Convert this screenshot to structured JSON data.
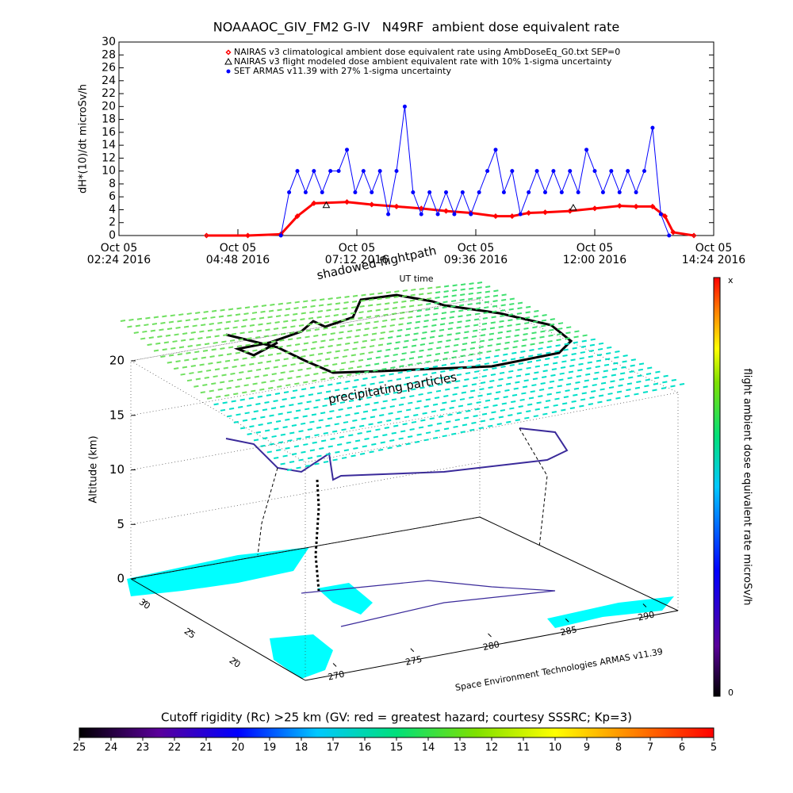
{
  "chart_data": [
    {
      "type": "line",
      "title": "NOAAAOC_GIV_FM2 G-IV   N49RF  ambient dose equivalent rate",
      "x_label": "UT time",
      "y_label": "dH*(10)/dt microSv/h",
      "annotation": "shadowed flightpath",
      "xlim": [
        "2016-10-05T02:24",
        "2016-10-05T14:24"
      ],
      "xticks": [
        {
          "value": "2016-10-05T02:24",
          "label": [
            "Oct 05",
            "02:24 2016"
          ]
        },
        {
          "value": "2016-10-05T04:48",
          "label": [
            "Oct 05",
            "04:48 2016"
          ]
        },
        {
          "value": "2016-10-05T07:12",
          "label": [
            "Oct 05",
            "07:12 2016"
          ]
        },
        {
          "value": "2016-10-05T09:36",
          "label": [
            "Oct 05",
            "09:36 2016"
          ]
        },
        {
          "value": "2016-10-05T12:00",
          "label": [
            "Oct 05",
            "12:00 2016"
          ]
        },
        {
          "value": "2016-10-05T14:24",
          "label": [
            "Oct 05",
            "14:24 2016"
          ]
        }
      ],
      "ylim": [
        0,
        30
      ],
      "yticks": [
        0,
        2,
        4,
        6,
        8,
        10,
        12,
        14,
        16,
        18,
        20,
        22,
        24,
        26,
        28,
        30
      ],
      "series": [
        {
          "name": "NAIRAS v3 climatological ambient dose equivalent rate using AmbDoseEq_G0.txt SEP=0",
          "color": "#ff0000",
          "marker": "diamond",
          "x": [
            "2016-10-05T04:10",
            "2016-10-05T05:00",
            "2016-10-05T05:40",
            "2016-10-05T06:00",
            "2016-10-05T06:20",
            "2016-10-05T07:00",
            "2016-10-05T07:30",
            "2016-10-05T08:00",
            "2016-10-05T08:30",
            "2016-10-05T09:00",
            "2016-10-05T09:30",
            "2016-10-05T10:00",
            "2016-10-05T10:20",
            "2016-10-05T10:40",
            "2016-10-05T11:00",
            "2016-10-05T11:30",
            "2016-10-05T12:00",
            "2016-10-05T12:30",
            "2016-10-05T12:50",
            "2016-10-05T13:10",
            "2016-10-05T13:25",
            "2016-10-05T13:35",
            "2016-10-05T14:00"
          ],
          "values": [
            0,
            0,
            0.2,
            3,
            5,
            5.2,
            4.8,
            4.5,
            4.2,
            3.8,
            3.5,
            3,
            3,
            3.5,
            3.6,
            3.8,
            4.2,
            4.6,
            4.5,
            4.5,
            3,
            0.5,
            0
          ]
        },
        {
          "name": "NAIRAS v3 flight modeled dose ambient equivalent rate with 10% 1-sigma uncertainty",
          "color": "#000000",
          "marker": "triangle",
          "x": [
            "2016-10-05T06:35",
            "2016-10-05T11:34"
          ],
          "values": [
            4.7,
            4.3
          ]
        },
        {
          "name": "SET ARMAS v11.39 with 27% 1-sigma uncertainty",
          "color": "#0000ff",
          "marker": "circle",
          "x": [
            "2016-10-05T05:40",
            "2016-10-05T05:50",
            "2016-10-05T06:00",
            "2016-10-05T06:10",
            "2016-10-05T06:20",
            "2016-10-05T06:30",
            "2016-10-05T06:40",
            "2016-10-05T06:50",
            "2016-10-05T07:00",
            "2016-10-05T07:10",
            "2016-10-05T07:20",
            "2016-10-05T07:30",
            "2016-10-05T07:40",
            "2016-10-05T07:50",
            "2016-10-05T08:00",
            "2016-10-05T08:10",
            "2016-10-05T08:20",
            "2016-10-05T08:30",
            "2016-10-05T08:40",
            "2016-10-05T08:50",
            "2016-10-05T09:00",
            "2016-10-05T09:10",
            "2016-10-05T09:20",
            "2016-10-05T09:30",
            "2016-10-05T09:40",
            "2016-10-05T09:50",
            "2016-10-05T10:00",
            "2016-10-05T10:10",
            "2016-10-05T10:20",
            "2016-10-05T10:30",
            "2016-10-05T10:40",
            "2016-10-05T10:50",
            "2016-10-05T11:00",
            "2016-10-05T11:10",
            "2016-10-05T11:20",
            "2016-10-05T11:30",
            "2016-10-05T11:40",
            "2016-10-05T11:50",
            "2016-10-05T12:00",
            "2016-10-05T12:10",
            "2016-10-05T12:20",
            "2016-10-05T12:30",
            "2016-10-05T12:40",
            "2016-10-05T12:50",
            "2016-10-05T13:00",
            "2016-10-05T13:10",
            "2016-10-05T13:20",
            "2016-10-05T13:30"
          ],
          "values": [
            0,
            6.7,
            10,
            6.7,
            10,
            6.7,
            10,
            10,
            13.3,
            6.7,
            10,
            6.7,
            10,
            3.3,
            10,
            20,
            6.7,
            3.3,
            6.7,
            3.3,
            6.7,
            3.3,
            6.7,
            3.3,
            6.7,
            10,
            13.3,
            6.7,
            10,
            3.3,
            6.7,
            10,
            6.7,
            10,
            6.7,
            10,
            6.7,
            13.3,
            10,
            6.7,
            10,
            6.7,
            10,
            6.7,
            10,
            16.7,
            3.3,
            0
          ]
        }
      ]
    },
    {
      "type": "surface3d",
      "z_label": "Altitude (km)",
      "zlim": [
        0,
        20
      ],
      "zticks": [
        0,
        5,
        10,
        15,
        20
      ],
      "ylim": [
        33,
        17
      ],
      "yticks": [
        30,
        25,
        20
      ],
      "xlim": [
        268,
        292
      ],
      "xticks": [
        270,
        275,
        280,
        285,
        290
      ],
      "annotation": "precipitating particles",
      "credit": "Space Environment Technologies ARMAS v11.39",
      "colorbar": {
        "label": "flight ambient dose equivalent rate microSv/h",
        "top": "x",
        "bottom": "0"
      }
    },
    {
      "type": "colorbar",
      "title": "Cutoff rigidity (Rc) >25 km (GV: red = greatest hazard; courtesy SSSRC; Kp=3)",
      "xlim": [
        25,
        5
      ],
      "xticks": [
        25,
        24,
        23,
        22,
        21,
        20,
        19,
        18,
        17,
        16,
        15,
        14,
        13,
        12,
        11,
        10,
        9,
        8,
        7,
        6,
        5
      ],
      "colors": [
        "#000000",
        "#5a009a",
        "#0000ff",
        "#00c8ff",
        "#00e07a",
        "#7ee000",
        "#ffff00",
        "#ff8000",
        "#ff0000"
      ]
    }
  ]
}
